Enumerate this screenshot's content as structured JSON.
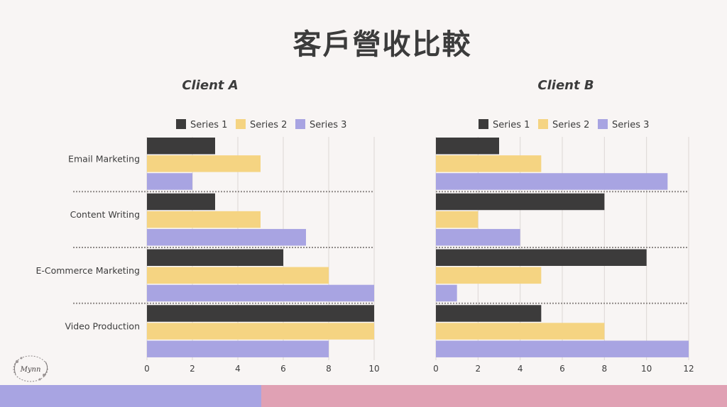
{
  "page_title": "客戶營收比較",
  "colors": {
    "background": "#f8f5f4",
    "series": [
      "#3c3b3b",
      "#f5d482",
      "#a8a4e2"
    ],
    "footer_left": "#a8a4e2",
    "footer_right": "#e0a1b4"
  },
  "logo": {
    "icon": "floral-wreath-logo",
    "text": "Mynn"
  },
  "chart_data": [
    {
      "type": "bar",
      "orientation": "horizontal",
      "title": "Client A",
      "categories": [
        "Email Marketing",
        "Content Writing",
        "E-Commerce Marketing",
        "Video Production"
      ],
      "series": [
        {
          "name": "Series 1",
          "values": [
            3,
            3,
            6,
            10
          ]
        },
        {
          "name": "Series 2",
          "values": [
            5,
            5,
            8,
            10
          ]
        },
        {
          "name": "Series 3",
          "values": [
            2,
            7,
            10,
            8
          ]
        }
      ],
      "xlim": [
        0,
        10
      ],
      "ticks": [
        0,
        2,
        4,
        6,
        8,
        10
      ],
      "grid": true,
      "legend": "top"
    },
    {
      "type": "bar",
      "orientation": "horizontal",
      "title": "Client B",
      "categories": [
        "Email Marketing",
        "Content Writing",
        "E-Commerce Marketing",
        "Video Production"
      ],
      "series": [
        {
          "name": "Series 1",
          "values": [
            3,
            8,
            10,
            5
          ]
        },
        {
          "name": "Series 2",
          "values": [
            5,
            2,
            5,
            8
          ]
        },
        {
          "name": "Series 3",
          "values": [
            11,
            4,
            1,
            12
          ]
        }
      ],
      "xlim": [
        0,
        12
      ],
      "ticks": [
        0,
        2,
        4,
        6,
        8,
        10,
        12
      ],
      "grid": true,
      "legend": "top"
    }
  ]
}
